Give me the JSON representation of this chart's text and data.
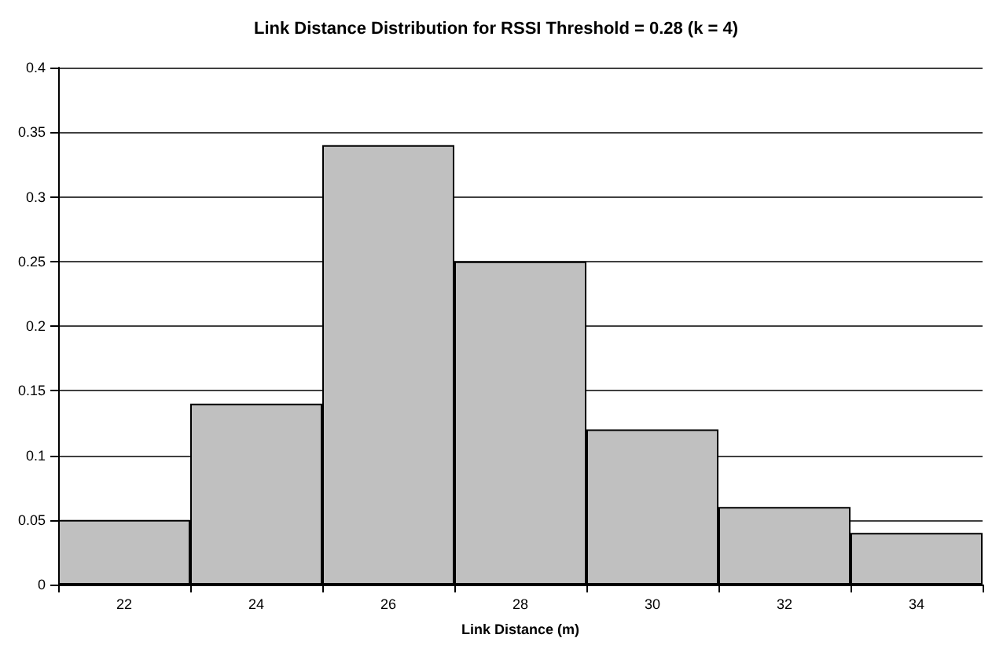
{
  "chart_data": {
    "type": "bar",
    "title": "Link Distance Distribution for RSSI Threshold = 0.28 (k = 4)",
    "xlabel": "Link Distance (m)",
    "categories": [
      "22",
      "24",
      "26",
      "28",
      "30",
      "32",
      "34"
    ],
    "values": [
      0.05,
      0.14,
      0.34,
      0.25,
      0.12,
      0.06,
      0.04
    ],
    "color": "#c0c0c0",
    "ylim": [
      0,
      0.4
    ],
    "yticks": [
      0,
      0.05,
      0.1,
      0.15,
      0.2,
      0.25,
      0.3,
      0.35,
      0.4
    ],
    "grid": "y"
  }
}
